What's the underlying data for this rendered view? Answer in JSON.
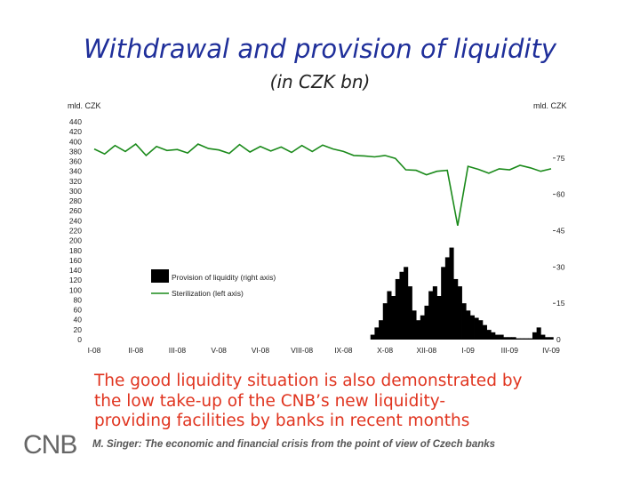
{
  "slide": {
    "title": "Withdrawal and provision of liquidity",
    "subtitle": "(in CZK bn)",
    "caption_lines": [
      "The good liquidity situation is also demonstrated by",
      "the low take-up of the CNB’s new liquidity-",
      "providing facilities by banks in recent months"
    ],
    "footer": "M. Singer: The economic and financial crisis from the point of view of Czech banks",
    "logo_text": "CNB"
  },
  "colors": {
    "title": "#1f2f9a",
    "caption": "#e0341f",
    "sterilization": "#1a8a1a",
    "provision": "#000000"
  },
  "chart_data": {
    "type": "line",
    "left_axis_unit": "mld. CZK",
    "right_axis_unit": "mld. CZK",
    "left_ylim": [
      0,
      440
    ],
    "right_ylim": [
      0,
      90
    ],
    "left_ticks": [
      "0",
      "20",
      "40",
      "60",
      "80",
      "100",
      "120",
      "140",
      "160",
      "180",
      "200",
      "220",
      "240",
      "260",
      "280",
      "300",
      "320",
      "340",
      "360",
      "380",
      "400",
      "420",
      "440"
    ],
    "right_ticks": [
      "0",
      "15",
      "30",
      "45",
      "60",
      "75"
    ],
    "x_ticks": [
      "I-08",
      "II-08",
      "III-08",
      "V-08",
      "VI-08",
      "VIII-08",
      "IX-08",
      "X-08",
      "XII-08",
      "I-09",
      "III-09",
      "IV-09"
    ],
    "legend": [
      "Provision of liquidity (right axis)",
      "Sterilization (left axis)"
    ],
    "grid": false,
    "legend_placement": "center-left",
    "series": [
      {
        "name": "Sterilization (left axis)",
        "axis": "left",
        "style": "line",
        "x": [
          0,
          0.25,
          0.5,
          0.75,
          1,
          1.25,
          1.5,
          1.75,
          2,
          2.25,
          2.5,
          2.75,
          3,
          3.25,
          3.5,
          3.75,
          4,
          4.25,
          4.5,
          4.75,
          5,
          5.25,
          5.5,
          5.75,
          6,
          6.25,
          6.5,
          6.75,
          7,
          7.25,
          7.5,
          7.75,
          8,
          8.25,
          8.5,
          8.75,
          9,
          9.25,
          9.5,
          9.75,
          10,
          10.25,
          10.5,
          10.75,
          11
        ],
        "values": [
          385,
          375,
          392,
          380,
          395,
          372,
          390,
          382,
          384,
          377,
          395,
          386,
          383,
          376,
          394,
          379,
          390,
          381,
          389,
          378,
          392,
          380,
          393,
          385,
          380,
          372,
          371,
          369,
          372,
          366,
          343,
          342,
          333,
          340,
          342,
          230,
          350,
          344,
          336,
          345,
          343,
          352,
          347,
          340,
          345
        ]
      },
      {
        "name": "Provision of liquidity (right axis)",
        "axis": "right",
        "style": "bar",
        "x": [
          6.7,
          6.8,
          6.9,
          7.0,
          7.1,
          7.2,
          7.3,
          7.4,
          7.5,
          7.6,
          7.7,
          7.8,
          7.9,
          8.0,
          8.1,
          8.2,
          8.3,
          8.4,
          8.5,
          8.6,
          8.7,
          8.8,
          8.9,
          9.0,
          9.1,
          9.2,
          9.3,
          9.4,
          9.5,
          9.6,
          9.7,
          9.8,
          9.9,
          10.0,
          10.1,
          10.2,
          10.3,
          10.4,
          10.5,
          10.6,
          10.7,
          10.8,
          10.9,
          11.0
        ],
        "values": [
          2,
          5,
          8,
          15,
          20,
          18,
          25,
          28,
          30,
          22,
          12,
          8,
          10,
          14,
          20,
          22,
          18,
          30,
          34,
          38,
          25,
          22,
          15,
          12,
          10,
          9,
          8,
          6,
          4,
          3,
          2,
          2,
          1,
          1,
          1,
          0.5,
          0.5,
          0.5,
          0.5,
          3,
          5,
          2,
          1,
          1
        ]
      }
    ]
  }
}
